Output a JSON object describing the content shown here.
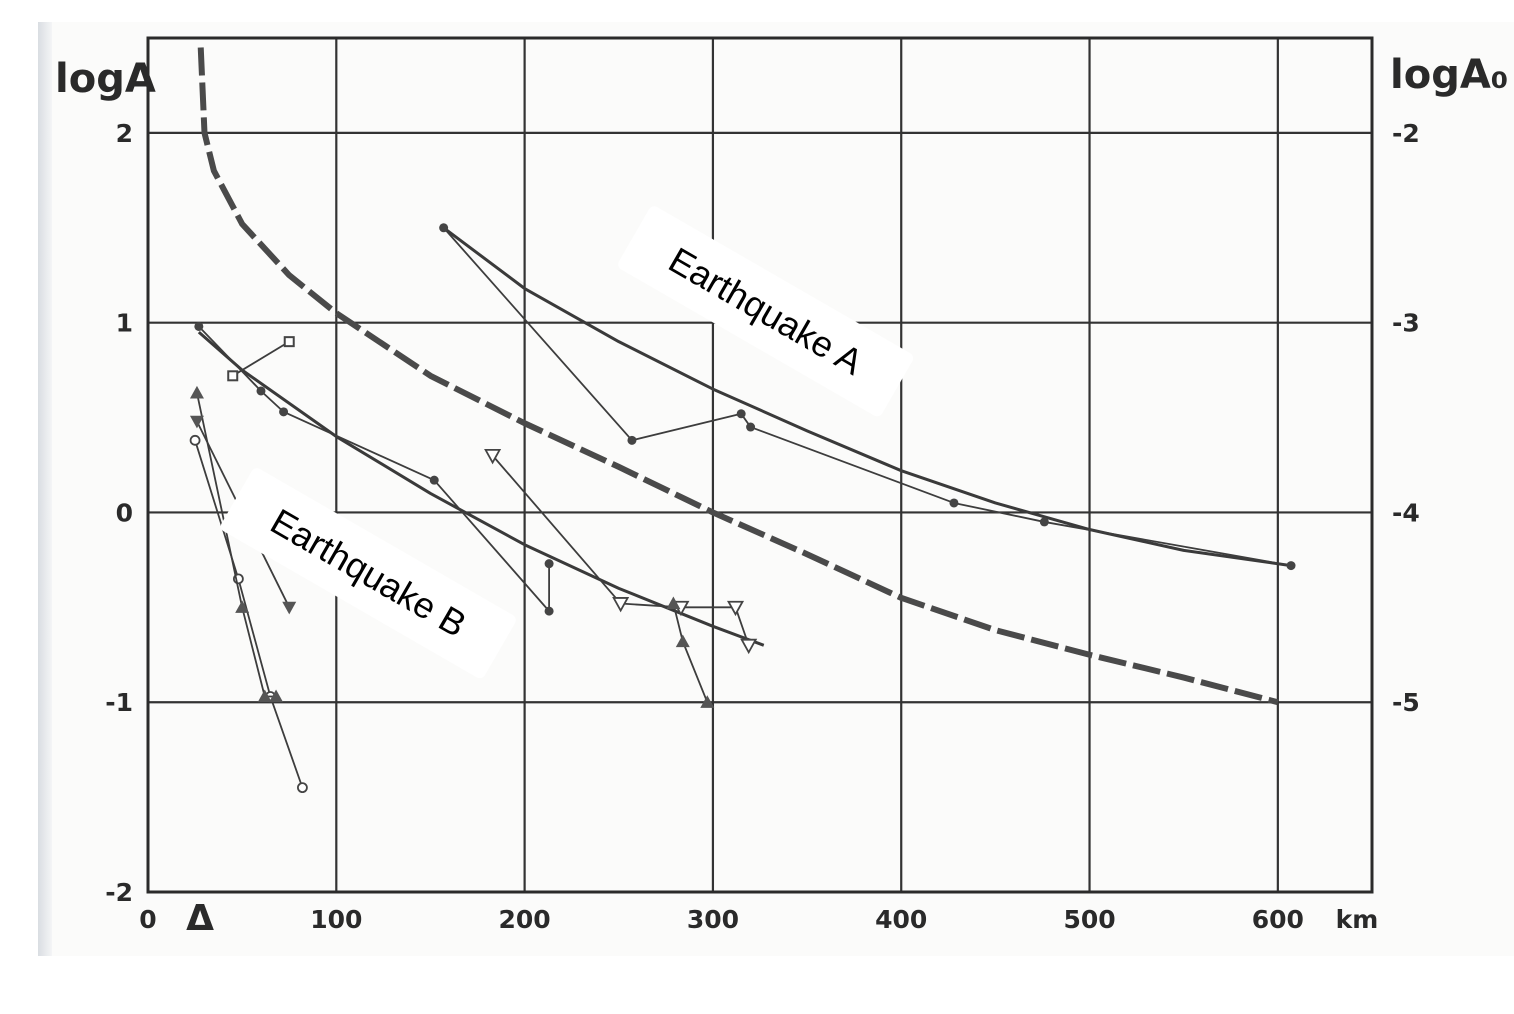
{
  "chart_data": {
    "type": "line",
    "xlabel": "km",
    "ylabel_left": "logA",
    "ylabel_right": "logA₀",
    "xlim": [
      0,
      650
    ],
    "ylim": [
      -2,
      2.5
    ],
    "x_ticks": [
      "0",
      "100",
      "200",
      "300",
      "400",
      "500",
      "600"
    ],
    "y_ticks_left": [
      "2",
      "1",
      "0",
      "-1",
      "-2"
    ],
    "y_ticks_right": [
      "-2",
      "-3",
      "-4",
      "-5"
    ],
    "y_ticks_left_values": [
      2,
      1,
      0,
      -1,
      -2
    ],
    "y_ticks_right_values": [
      2,
      1,
      0,
      -1
    ],
    "grid": true,
    "station_marker": "Δ",
    "reference_curve": {
      "style": "dashed",
      "x": [
        28,
        30,
        35,
        50,
        75,
        100,
        150,
        200,
        250,
        300,
        350,
        400,
        450,
        500,
        550,
        600
      ],
      "y": [
        2.45,
        2.0,
        1.8,
        1.52,
        1.25,
        1.05,
        0.72,
        0.47,
        0.24,
        0.0,
        -0.22,
        -0.45,
        -0.62,
        -0.75,
        -0.87,
        -1.0
      ]
    },
    "series": [
      {
        "marker": "circle",
        "x": [
          157,
          257,
          315,
          320,
          428,
          476,
          607
        ],
        "y": [
          1.5,
          0.38,
          0.52,
          0.45,
          0.05,
          -0.05,
          -0.28
        ]
      },
      {
        "marker": "circle-open",
        "x": [
          25,
          48,
          65,
          82
        ],
        "y": [
          0.38,
          -0.35,
          -0.97,
          -1.45
        ]
      },
      {
        "marker": "square",
        "x": [
          45,
          75
        ],
        "y": [
          0.72,
          0.9
        ]
      },
      {
        "marker": "circle",
        "x": [
          27,
          60,
          72,
          152,
          213,
          213
        ],
        "y": [
          0.98,
          0.64,
          0.53,
          0.17,
          -0.52,
          -0.27
        ]
      },
      {
        "marker": "triangle-down-open",
        "x": [
          183,
          251,
          283,
          312,
          319
        ],
        "y": [
          0.3,
          -0.48,
          -0.5,
          -0.5,
          -0.7
        ]
      },
      {
        "marker": "triangle-filled",
        "x": [
          26,
          50,
          62,
          68
        ],
        "y": [
          0.63,
          -0.5,
          -0.97,
          -0.97
        ]
      },
      {
        "marker": "triangle-down-filled",
        "x": [
          26,
          75
        ],
        "y": [
          0.48,
          -0.5
        ]
      },
      {
        "marker": "triangle-filled",
        "x": [
          279,
          284,
          297
        ],
        "y": [
          -0.48,
          -0.68,
          -1.0
        ]
      }
    ],
    "fit_curves": [
      {
        "x": [
          157,
          200,
          250,
          300,
          350,
          400,
          450,
          500,
          550,
          607
        ],
        "y": [
          1.5,
          1.18,
          0.9,
          0.65,
          0.43,
          0.22,
          0.05,
          -0.09,
          -0.2,
          -0.28
        ]
      },
      {
        "x": [
          27,
          50,
          100,
          150,
          200,
          250,
          300,
          327
        ],
        "y": [
          0.95,
          0.75,
          0.4,
          0.1,
          -0.17,
          -0.4,
          -0.6,
          -0.7
        ]
      }
    ],
    "annotations": [
      {
        "text": "Earthquake A",
        "x": 328,
        "y": 1.06,
        "rotate": 30
      },
      {
        "text": "Earthquake B",
        "x": 117,
        "y": -0.32,
        "rotate": 30
      }
    ]
  }
}
